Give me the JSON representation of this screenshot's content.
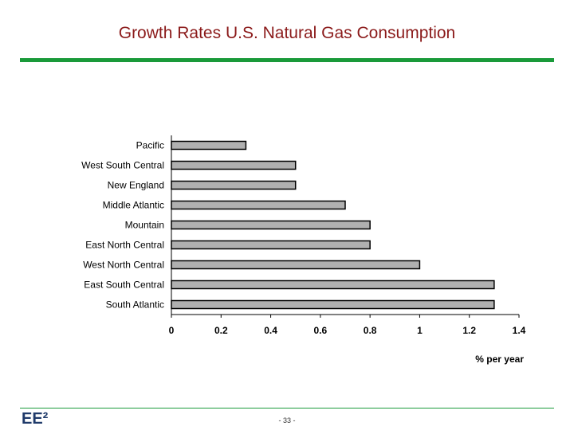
{
  "slide": {
    "title": "Growth Rates U.S. Natural Gas Consumption",
    "logo": "EE²",
    "page_number": "- 33 -"
  },
  "colors": {
    "title": "#8b1a1a",
    "accent_bar": "#1a9a3a",
    "bar_fill": "#b0b0b0",
    "bar_stroke": "#000000"
  },
  "chart_data": {
    "type": "bar",
    "orientation": "horizontal",
    "categories": [
      "Pacific",
      "West South Central",
      "New England",
      "Middle Atlantic",
      "Mountain",
      "East North Central",
      "West North Central",
      "East South Central",
      "South Atlantic"
    ],
    "values": [
      0.3,
      0.5,
      0.5,
      0.7,
      0.8,
      0.8,
      1.0,
      1.3,
      1.3
    ],
    "xlabel": "% per year",
    "ylabel": "",
    "xlim": [
      0,
      1.4
    ],
    "xticks": [
      "0",
      "0.2",
      "0.4",
      "0.6",
      "0.8",
      "1",
      "1.2",
      "1.4"
    ],
    "grid": false,
    "legend": false
  }
}
